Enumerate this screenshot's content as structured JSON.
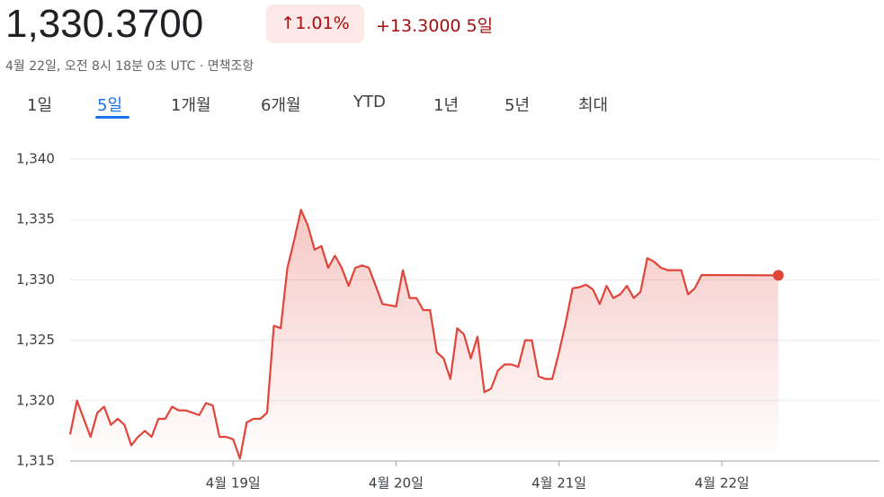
{
  "header": {
    "price": "1,330.3700",
    "change_percent": "↑1.01%",
    "change": "+13.3000",
    "period": "5일",
    "subtitle": "4월 22일, 오전 8시 18분 0초 UTC · 면책조항"
  },
  "tabs": [
    "1일",
    "5일",
    "1개월",
    "6개월",
    "YTD",
    "1년",
    "5년",
    "최대"
  ],
  "active_tab": 1,
  "chart_data": {
    "type": "line",
    "color": "#e0453a",
    "grid": true,
    "x": [
      0,
      1,
      2,
      3,
      4,
      5,
      6,
      7,
      8,
      9,
      10,
      11,
      12,
      13,
      14,
      15,
      16,
      17,
      18,
      19,
      20,
      21,
      22,
      23,
      24,
      25,
      26,
      27,
      28,
      29,
      30,
      31,
      32,
      33,
      34,
      35,
      36,
      37,
      38,
      39,
      40,
      41,
      42,
      43,
      44,
      45,
      46,
      47,
      48,
      49,
      50,
      51,
      52,
      53,
      54,
      55,
      56,
      57,
      58,
      59,
      60,
      61,
      62,
      63,
      64,
      65,
      66,
      67,
      68,
      69,
      70,
      71,
      72,
      73,
      74,
      75,
      76,
      77,
      78,
      79,
      80,
      81,
      82,
      83,
      84,
      85,
      86,
      87,
      88,
      89,
      90,
      91,
      92,
      93,
      104.3
    ],
    "values": [
      1317.2,
      1320,
      1318.5,
      1317,
      1319,
      1319.5,
      1318,
      1318.5,
      1318,
      1316.3,
      1317,
      1317.5,
      1317,
      1318.5,
      1318.5,
      1319.5,
      1319.2,
      1319.2,
      1319,
      1318.8,
      1319.8,
      1319.6,
      1317,
      1317,
      1316.8,
      1315.2,
      1318.2,
      1318.5,
      1318.5,
      1319,
      1326.2,
      1326,
      1331,
      1333.3,
      1335.8,
      1334.5,
      1332.5,
      1332.8,
      1331,
      1332,
      1331,
      1329.5,
      1331,
      1331.2,
      1331,
      1329.5,
      1328,
      1327.9,
      1327.8,
      1330.8,
      1328.5,
      1328.5,
      1327.5,
      1327.5,
      1324,
      1323.5,
      1321.8,
      1326,
      1325.5,
      1323.5,
      1325.3,
      1320.7,
      1321,
      1322.5,
      1323,
      1323,
      1322.8,
      1325,
      1325,
      1322,
      1321.8,
      1321.8,
      1324,
      1326.5,
      1329.3,
      1329.4,
      1329.6,
      1329.2,
      1328,
      1329.5,
      1328.5,
      1328.8,
      1329.5,
      1328.5,
      1329,
      1331.8,
      1331.5,
      1331,
      1330.8,
      1330.8,
      1330.8,
      1328.8,
      1329.3,
      1330.4,
      1330.37
    ],
    "xlim": [
      0,
      119.2
    ],
    "xticks": [
      {
        "value": 24,
        "label": "4월 19일"
      },
      {
        "value": 48,
        "label": "4월 20일"
      },
      {
        "value": 72,
        "label": "4월 21일"
      },
      {
        "value": 96,
        "label": "4월 22일"
      }
    ],
    "ylim": [
      1315,
      1340
    ],
    "yticks": [
      {
        "value": 1315,
        "label": "1,315"
      },
      {
        "value": 1320,
        "label": "1,320"
      },
      {
        "value": 1325,
        "label": "1,325"
      },
      {
        "value": 1330,
        "label": "1,330"
      },
      {
        "value": 1335,
        "label": "1,335"
      },
      {
        "value": 1340,
        "label": "1,340"
      }
    ]
  }
}
